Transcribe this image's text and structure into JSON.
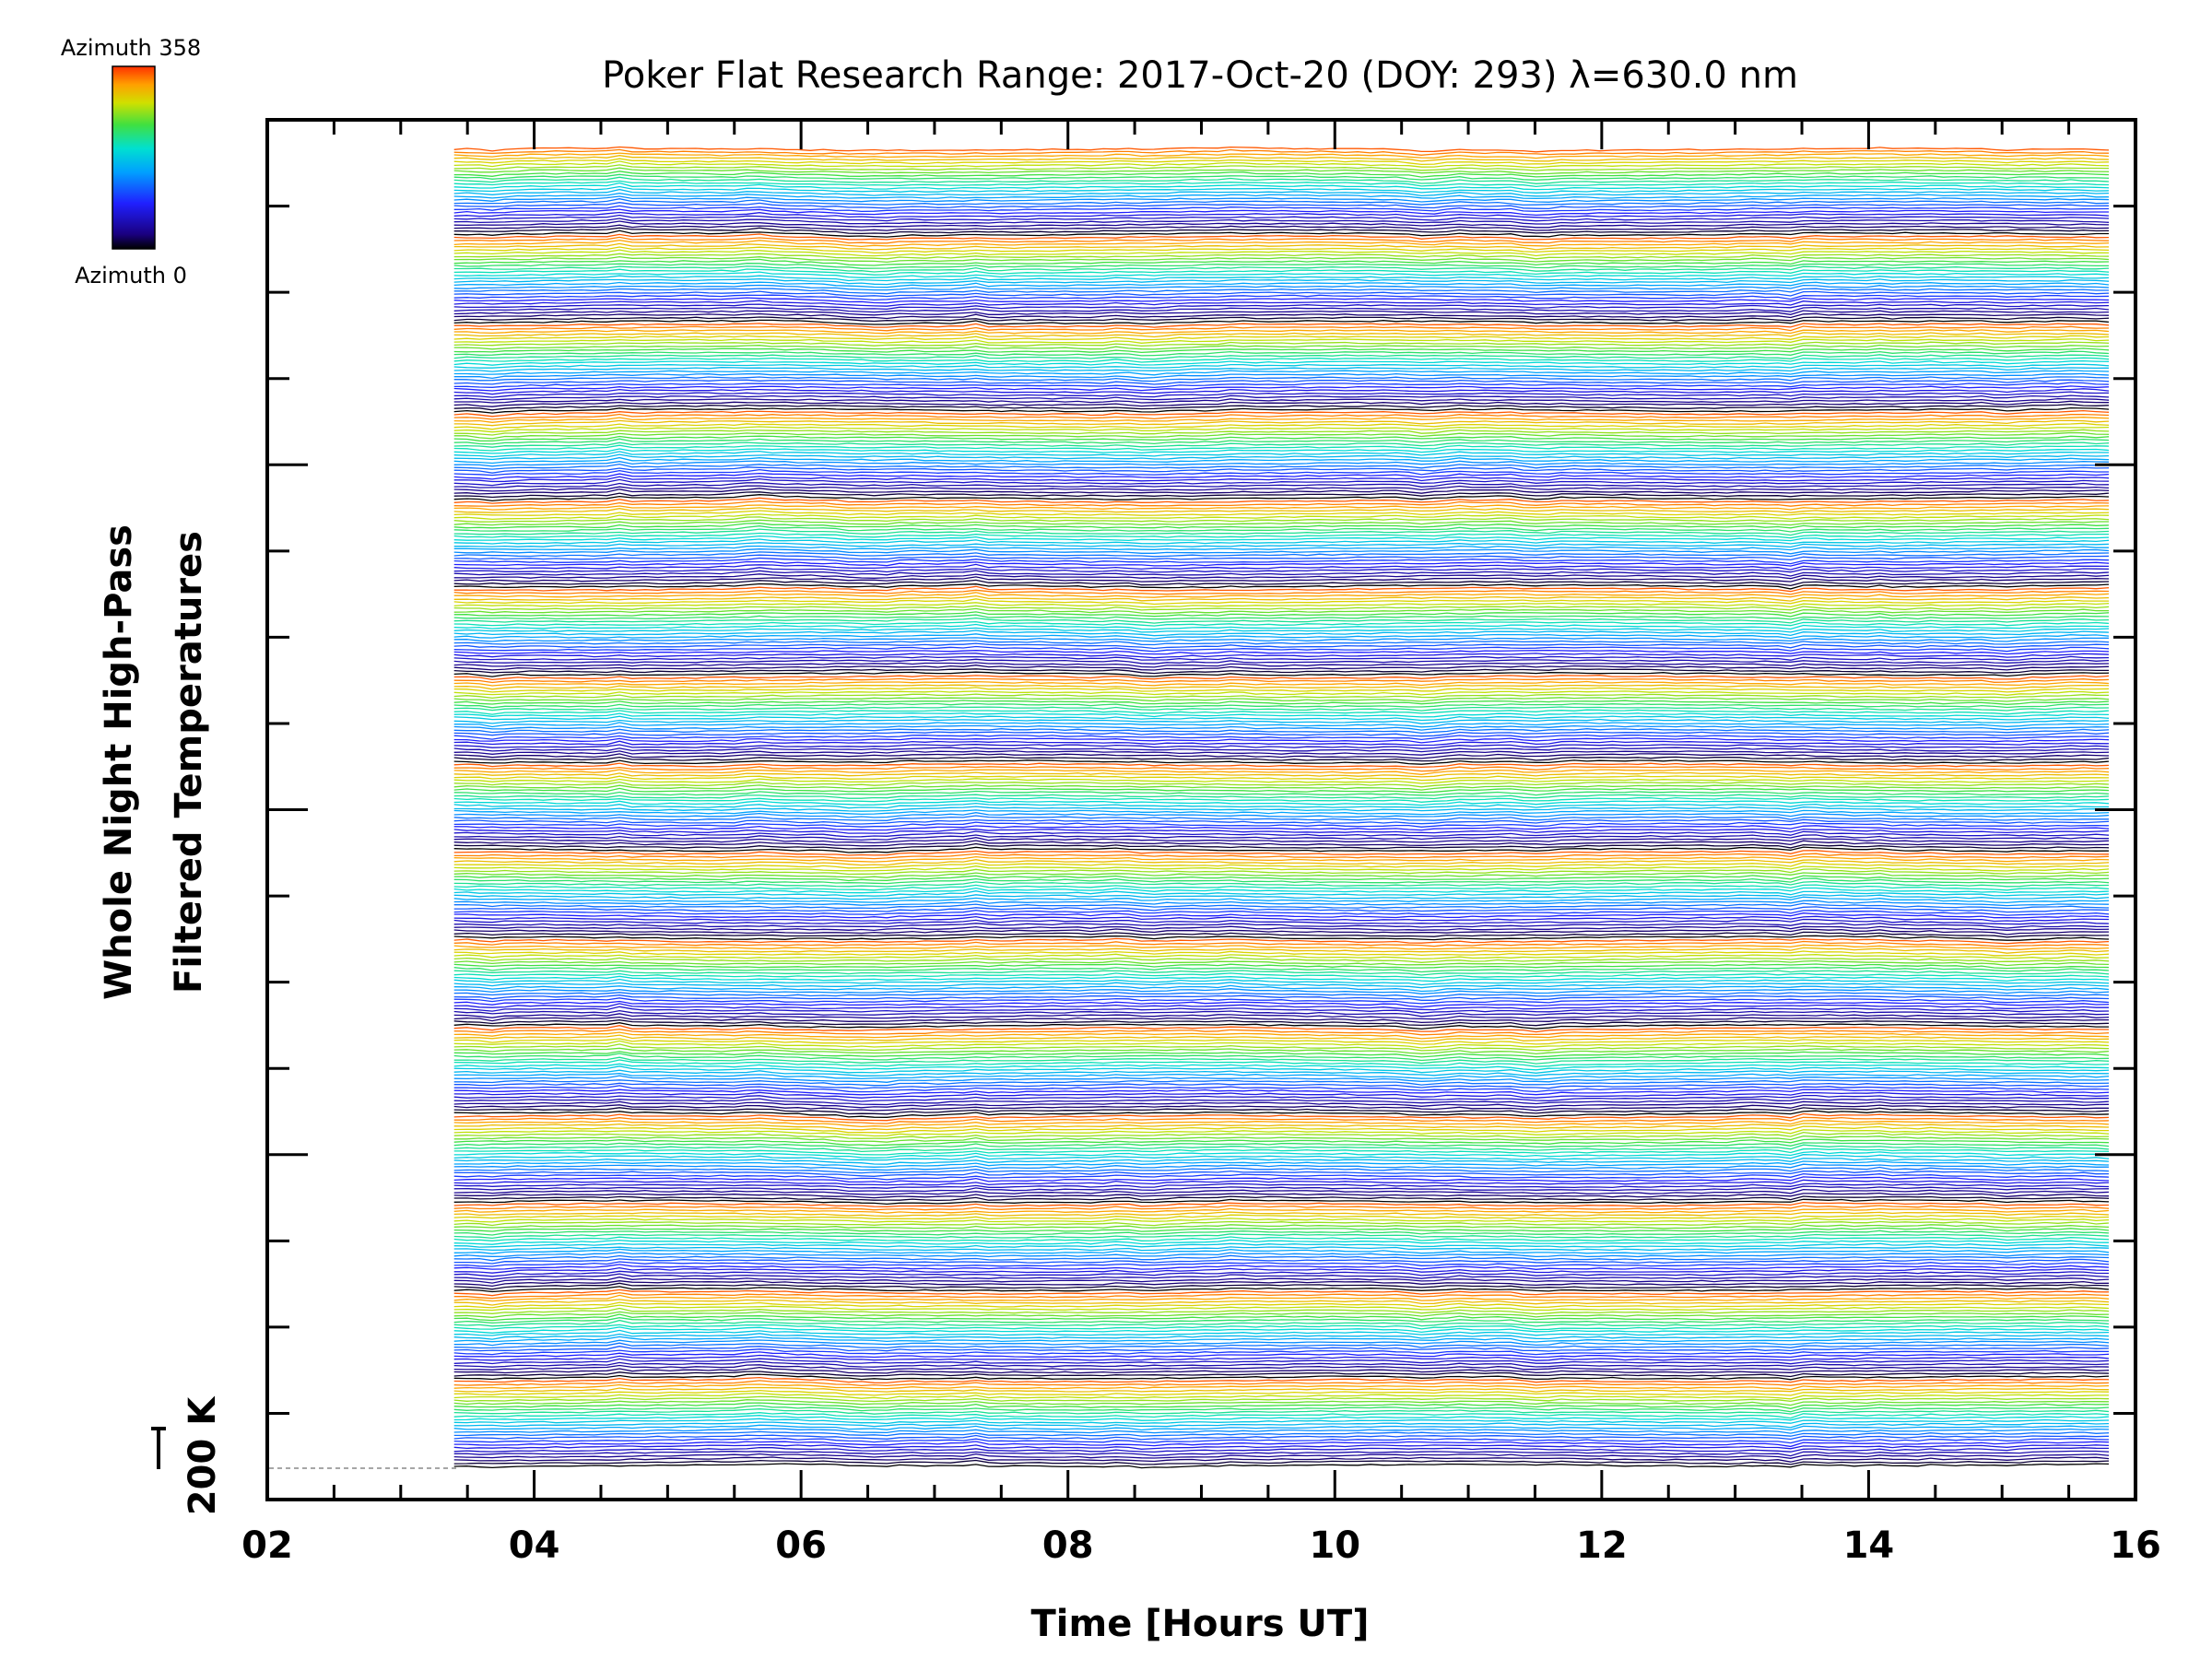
{
  "chart_data": {
    "type": "line",
    "title": "Poker Flat Research Range: 2017-Oct-20 (DOY: 293) λ=630.0 nm",
    "xlabel": "Time [Hours UT]",
    "ylabel_line1": "Whole Night High-Pass",
    "ylabel_line2": "Filtered Temperatures",
    "scale_marker": "200 K",
    "xlim": [
      2,
      16
    ],
    "x_ticks": [
      "02",
      "04",
      "06",
      "08",
      "10",
      "12",
      "14",
      "16"
    ],
    "data_start_hour": 3.4,
    "data_end_hour": 15.8,
    "trace_count": 420,
    "colorbar": {
      "top_label": "Azimuth 358",
      "bottom_label": "Azimuth 0",
      "azimuth_range": [
        0,
        358
      ],
      "colormap": "rainbow"
    },
    "azimuth_sweeps": 15,
    "colors": {
      "axis": "#000000",
      "colormap_stops": [
        "#000000",
        "#1a0080",
        "#2020ff",
        "#00a0ff",
        "#00e0d0",
        "#40e040",
        "#d0e000",
        "#ffa000",
        "#ff3000"
      ]
    }
  }
}
